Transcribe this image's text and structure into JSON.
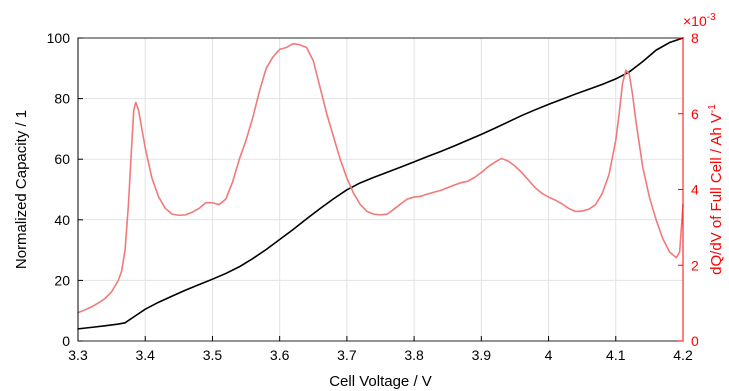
{
  "chart_data": {
    "type": "line",
    "xlabel": "Cell Voltage / V",
    "ylabel": "Normalized Capacity / 1",
    "y2label": "dQ/dV of Full Cell / Ah V",
    "y2label_sup": "-1",
    "xlim": [
      3.3,
      4.2
    ],
    "ylim": [
      0,
      100
    ],
    "y2lim": [
      0,
      8
    ],
    "y2_exponent_label": "×10",
    "y2_exponent_power": "-3",
    "x_ticks": [
      "3.3",
      "3.4",
      "3.5",
      "3.6",
      "3.7",
      "3.8",
      "3.9",
      "4",
      "4.1",
      "4.2"
    ],
    "y_ticks": [
      "0",
      "20",
      "40",
      "60",
      "80",
      "100"
    ],
    "y2_ticks": [
      "0",
      "2",
      "4",
      "6",
      "8"
    ],
    "grid": true,
    "colors": {
      "left_axis": "#000000",
      "right_axis": "#ff0000",
      "capacity": "#000000",
      "dqdv": "#f07a7a",
      "grid": "#e3e3e3"
    },
    "series": [
      {
        "axis": "left",
        "x": [
          3.3,
          3.32,
          3.34,
          3.36,
          3.37,
          3.38,
          3.39,
          3.4,
          3.42,
          3.44,
          3.46,
          3.48,
          3.5,
          3.52,
          3.54,
          3.56,
          3.58,
          3.6,
          3.62,
          3.64,
          3.66,
          3.68,
          3.7,
          3.72,
          3.74,
          3.76,
          3.78,
          3.8,
          3.82,
          3.84,
          3.86,
          3.88,
          3.9,
          3.92,
          3.94,
          3.96,
          3.98,
          4.0,
          4.02,
          4.04,
          4.06,
          4.08,
          4.1,
          4.12,
          4.14,
          4.16,
          4.18,
          4.2
        ],
        "values": [
          4.0,
          4.5,
          5.0,
          5.6,
          6.0,
          7.5,
          9.0,
          10.5,
          12.8,
          14.8,
          16.8,
          18.6,
          20.4,
          22.3,
          24.5,
          27.2,
          30.2,
          33.5,
          36.8,
          40.3,
          43.7,
          46.9,
          49.9,
          52.2,
          54.0,
          55.7,
          57.4,
          59.1,
          60.9,
          62.6,
          64.4,
          66.3,
          68.2,
          70.2,
          72.3,
          74.4,
          76.3,
          78.1,
          79.8,
          81.5,
          83.1,
          84.7,
          86.5,
          88.8,
          92.2,
          96.0,
          98.5,
          100.0
        ]
      },
      {
        "axis": "right",
        "x": [
          3.3,
          3.31,
          3.32,
          3.33,
          3.34,
          3.35,
          3.36,
          3.365,
          3.37,
          3.375,
          3.38,
          3.383,
          3.386,
          3.39,
          3.395,
          3.4,
          3.41,
          3.42,
          3.43,
          3.44,
          3.45,
          3.46,
          3.47,
          3.48,
          3.49,
          3.5,
          3.51,
          3.52,
          3.53,
          3.54,
          3.55,
          3.56,
          3.57,
          3.58,
          3.59,
          3.6,
          3.61,
          3.62,
          3.63,
          3.64,
          3.65,
          3.66,
          3.67,
          3.68,
          3.69,
          3.7,
          3.71,
          3.72,
          3.73,
          3.74,
          3.75,
          3.76,
          3.77,
          3.78,
          3.79,
          3.8,
          3.81,
          3.82,
          3.83,
          3.84,
          3.85,
          3.86,
          3.87,
          3.88,
          3.89,
          3.9,
          3.91,
          3.92,
          3.93,
          3.94,
          3.95,
          3.96,
          3.97,
          3.98,
          3.99,
          4.0,
          4.01,
          4.02,
          4.03,
          4.04,
          4.05,
          4.06,
          4.07,
          4.08,
          4.09,
          4.1,
          4.105,
          4.11,
          4.115,
          4.12,
          4.125,
          4.13,
          4.14,
          4.15,
          4.16,
          4.17,
          4.18,
          4.19,
          4.195,
          4.2
        ],
        "values": [
          0.75,
          0.82,
          0.9,
          1.0,
          1.12,
          1.3,
          1.6,
          1.85,
          2.4,
          3.6,
          5.2,
          6.1,
          6.3,
          6.1,
          5.6,
          5.1,
          4.3,
          3.8,
          3.5,
          3.35,
          3.32,
          3.33,
          3.4,
          3.5,
          3.65,
          3.65,
          3.6,
          3.75,
          4.2,
          4.8,
          5.3,
          5.9,
          6.6,
          7.2,
          7.5,
          7.7,
          7.75,
          7.85,
          7.82,
          7.75,
          7.4,
          6.7,
          6.0,
          5.4,
          4.8,
          4.3,
          3.9,
          3.6,
          3.42,
          3.35,
          3.33,
          3.35,
          3.48,
          3.62,
          3.75,
          3.8,
          3.82,
          3.88,
          3.93,
          3.98,
          4.05,
          4.12,
          4.18,
          4.22,
          4.32,
          4.45,
          4.6,
          4.72,
          4.82,
          4.75,
          4.62,
          4.45,
          4.25,
          4.05,
          3.9,
          3.8,
          3.72,
          3.62,
          3.5,
          3.42,
          3.43,
          3.48,
          3.6,
          3.9,
          4.4,
          5.3,
          6.0,
          6.8,
          7.15,
          7.05,
          6.5,
          5.8,
          4.6,
          3.8,
          3.2,
          2.7,
          2.35,
          2.2,
          2.35,
          3.6
        ]
      }
    ]
  }
}
